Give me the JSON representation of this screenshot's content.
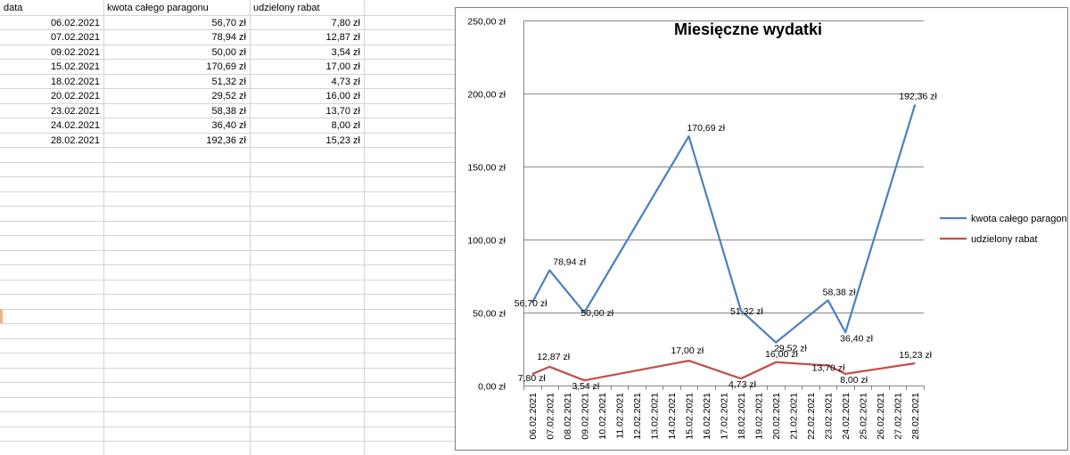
{
  "sheet": {
    "headers": [
      "data",
      "kwota całego paragonu",
      "udzielony rabat"
    ],
    "rows": [
      [
        "06.02.2021",
        "56,70 zł",
        "7,80 zł"
      ],
      [
        "07.02.2021",
        "78,94 zł",
        "12,87 zł"
      ],
      [
        "09.02.2021",
        "50,00 zł",
        "3,54 zł"
      ],
      [
        "15.02.2021",
        "170,69 zł",
        "17,00 zł"
      ],
      [
        "18.02.2021",
        "51,32 zł",
        "4,73 zł"
      ],
      [
        "20.02.2021",
        "29,52 zł",
        "16,00 zł"
      ],
      [
        "23.02.2021",
        "58,38 zł",
        "13,70 zł"
      ],
      [
        "24.02.2021",
        "36,40 zł",
        "8,00 zł"
      ],
      [
        "28.02.2021",
        "192,36 zł",
        "15,23 zł"
      ]
    ]
  },
  "colors": {
    "series1": "#4f81bd",
    "series2": "#c0504d",
    "grid": "#868686",
    "cell_border": "#d4d4d4"
  },
  "chart_data": {
    "type": "line",
    "title": "Miesięczne wydatki",
    "x": [
      "06.02.2021",
      "07.02.2021",
      "08.02.2021",
      "09.02.2021",
      "10.02.2021",
      "11.02.2021",
      "12.02.2021",
      "13.02.2021",
      "14.02.2021",
      "15.02.2021",
      "16.02.2021",
      "17.02.2021",
      "18.02.2021",
      "19.02.2021",
      "20.02.2021",
      "21.02.2021",
      "22.02.2021",
      "23.02.2021",
      "24.02.2021",
      "25.02.2021",
      "26.02.2021",
      "27.02.2021",
      "28.02.2021"
    ],
    "y_ticks": [
      "0,00 zł",
      "50,00 zł",
      "100,00 zł",
      "150,00 zł",
      "200,00 zł",
      "250,00 zł"
    ],
    "ylim": [
      0,
      250
    ],
    "grid": true,
    "legend_position": "right",
    "series": [
      {
        "name": "kwota całego paragonu",
        "points": [
          {
            "x": "06.02.2021",
            "y": 56.7,
            "label": "56,70 zł"
          },
          {
            "x": "07.02.2021",
            "y": 78.94,
            "label": "78,94 zł"
          },
          {
            "x": "09.02.2021",
            "y": 50.0,
            "label": "50,00 zł"
          },
          {
            "x": "15.02.2021",
            "y": 170.69,
            "label": "170,69 zł"
          },
          {
            "x": "18.02.2021",
            "y": 51.32,
            "label": "51,32 zł"
          },
          {
            "x": "20.02.2021",
            "y": 29.52,
            "label": "29,52 zł"
          },
          {
            "x": "23.02.2021",
            "y": 58.38,
            "label": "58,38 zł"
          },
          {
            "x": "24.02.2021",
            "y": 36.4,
            "label": "36,40 zł"
          },
          {
            "x": "28.02.2021",
            "y": 192.36,
            "label": "192,36 zł"
          }
        ]
      },
      {
        "name": "udzielony rabat",
        "points": [
          {
            "x": "06.02.2021",
            "y": 7.8,
            "label": "7,80 zł"
          },
          {
            "x": "07.02.2021",
            "y": 12.87,
            "label": "12,87 zł"
          },
          {
            "x": "09.02.2021",
            "y": 3.54,
            "label": "3,54 zł"
          },
          {
            "x": "15.02.2021",
            "y": 17.0,
            "label": "17,00 zł"
          },
          {
            "x": "18.02.2021",
            "y": 4.73,
            "label": "4,73 zł"
          },
          {
            "x": "20.02.2021",
            "y": 16.0,
            "label": "16,00 zł"
          },
          {
            "x": "23.02.2021",
            "y": 13.7,
            "label": "13,70 zł"
          },
          {
            "x": "24.02.2021",
            "y": 8.0,
            "label": "8,00 zł"
          },
          {
            "x": "28.02.2021",
            "y": 15.23,
            "label": "15,23 zł"
          }
        ]
      }
    ]
  }
}
